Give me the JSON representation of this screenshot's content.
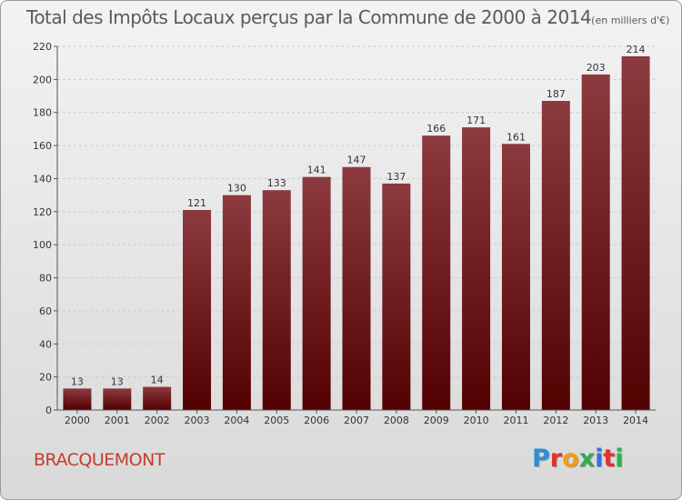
{
  "title": "Total des Impôts Locaux perçus par la Commune de 2000 à 2014",
  "unit_label": "(en milliers d'€)",
  "commune": "BRACQUEMONT",
  "brand": {
    "letters": [
      "P",
      "r",
      "o",
      "x",
      "i",
      "t",
      "i"
    ],
    "colors": [
      "#2a8fd6",
      "#e8302a",
      "#f39c12",
      "#34a853",
      "#3b6fd8",
      "#e8302a",
      "#2cb34a"
    ]
  },
  "colors": {
    "bar_top": "#8c3a3f",
    "bar_bottom": "#520000",
    "grid": "#cccccc",
    "axis": "#555555"
  },
  "chart_data": {
    "type": "bar",
    "title": "Total des Impôts Locaux perçus par la Commune de 2000 à 2014",
    "xlabel": "",
    "ylabel": "en milliers d'€",
    "categories": [
      "2000",
      "2001",
      "2002",
      "2003",
      "2004",
      "2005",
      "2006",
      "2007",
      "2008",
      "2009",
      "2010",
      "2011",
      "2012",
      "2013",
      "2014"
    ],
    "values": [
      13,
      13,
      14,
      121,
      130,
      133,
      141,
      147,
      137,
      166,
      171,
      161,
      187,
      203,
      214
    ],
    "ylim": [
      0,
      220
    ],
    "yticks": [
      0,
      20,
      40,
      60,
      80,
      100,
      120,
      140,
      160,
      180,
      200,
      220
    ],
    "grid": true
  }
}
